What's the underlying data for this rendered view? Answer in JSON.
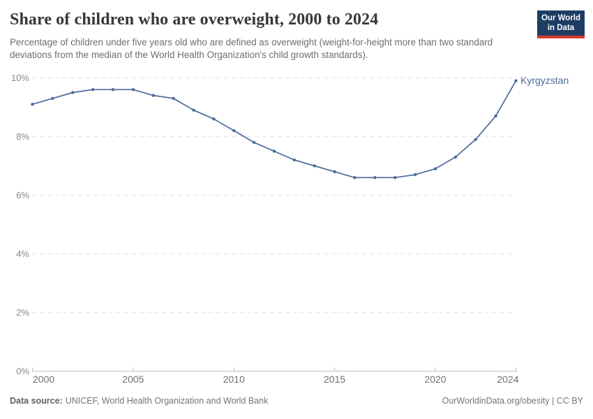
{
  "header": {
    "title": "Share of children who are overweight, 2000 to 2024",
    "subtitle": "Percentage of children under five years old who are defined as overweight (weight-for-height more than two standard deviations from the median of the World Health Organization's child growth standards).",
    "logo": {
      "line1": "Our World",
      "line2": "in Data",
      "bg_color": "#1d3d63",
      "accent_color": "#d7382e"
    }
  },
  "chart_data": {
    "type": "line",
    "title": "Share of children who are overweight, 2000 to 2024",
    "entity": "Kyrgyzstan",
    "x": [
      2000,
      2001,
      2002,
      2003,
      2004,
      2005,
      2006,
      2007,
      2008,
      2009,
      2010,
      2011,
      2012,
      2013,
      2014,
      2015,
      2016,
      2017,
      2018,
      2019,
      2020,
      2021,
      2022,
      2023,
      2024
    ],
    "series": [
      {
        "name": "Kyrgyzstan",
        "color": "#4c6a9c",
        "values": [
          9.1,
          9.3,
          9.5,
          9.6,
          9.6,
          9.6,
          9.4,
          9.3,
          8.9,
          8.6,
          8.2,
          7.8,
          7.5,
          7.2,
          7.0,
          6.8,
          6.6,
          6.6,
          6.6,
          6.7,
          6.9,
          7.3,
          7.9,
          8.7,
          9.9
        ]
      }
    ],
    "xlabel": "",
    "ylabel": "",
    "xlim": [
      2000,
      2024
    ],
    "ylim": [
      0,
      10
    ],
    "x_ticks": [
      {
        "value": 2000,
        "label": "2000"
      },
      {
        "value": 2005,
        "label": "2005"
      },
      {
        "value": 2010,
        "label": "2010"
      },
      {
        "value": 2015,
        "label": "2015"
      },
      {
        "value": 2020,
        "label": "2020"
      },
      {
        "value": 2024,
        "label": "2024"
      }
    ],
    "y_ticks": [
      {
        "value": 0,
        "label": "0%"
      },
      {
        "value": 2,
        "label": "2%"
      },
      {
        "value": 4,
        "label": "4%"
      },
      {
        "value": 6,
        "label": "6%"
      },
      {
        "value": 8,
        "label": "8%"
      },
      {
        "value": 10,
        "label": "10%"
      }
    ],
    "grid": "horizontal-dashed",
    "legend_position": "line-end-label"
  },
  "footer": {
    "datasource_label": "Data source:",
    "datasource_value": "UNICEF, World Health Organization and World Bank",
    "attribution": "OurWorldinData.org/obesity | CC BY"
  }
}
